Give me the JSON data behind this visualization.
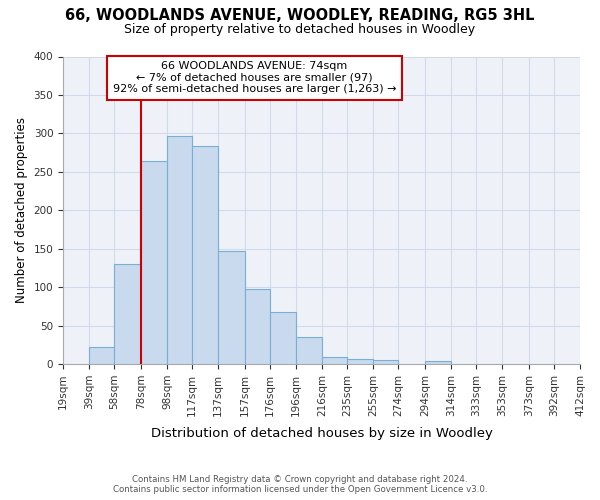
{
  "title": "66, WOODLANDS AVENUE, WOODLEY, READING, RG5 3HL",
  "subtitle": "Size of property relative to detached houses in Woodley",
  "xlabel": "Distribution of detached houses by size in Woodley",
  "ylabel": "Number of detached properties",
  "bin_edges": [
    19,
    39,
    58,
    78,
    98,
    117,
    137,
    157,
    176,
    196,
    216,
    235,
    255,
    274,
    294,
    314,
    333,
    353,
    373,
    392,
    412
  ],
  "bin_labels": [
    "19sqm",
    "39sqm",
    "58sqm",
    "78sqm",
    "98sqm",
    "117sqm",
    "137sqm",
    "157sqm",
    "176sqm",
    "196sqm",
    "216sqm",
    "235sqm",
    "255sqm",
    "274sqm",
    "294sqm",
    "314sqm",
    "333sqm",
    "353sqm",
    "373sqm",
    "392sqm",
    "412sqm"
  ],
  "bar_heights": [
    0,
    22,
    130,
    264,
    297,
    284,
    147,
    98,
    68,
    35,
    9,
    6,
    5,
    0,
    4,
    0,
    0,
    0,
    0,
    0
  ],
  "bar_color": "#c9d9ee",
  "bar_edge_color": "#7aafd4",
  "vline_x": 78,
  "vline_color": "#cc0000",
  "annotation_lines": [
    "66 WOODLANDS AVENUE: 74sqm",
    "← 7% of detached houses are smaller (97)",
    "92% of semi-detached houses are larger (1,263) →"
  ],
  "ylim": [
    0,
    400
  ],
  "yticks": [
    0,
    50,
    100,
    150,
    200,
    250,
    300,
    350,
    400
  ],
  "footer_line1": "Contains HM Land Registry data © Crown copyright and database right 2024.",
  "footer_line2": "Contains public sector information licensed under the Open Government Licence v3.0.",
  "bg_color": "#ffffff",
  "plot_bg_color": "#eef2f8",
  "grid_color": "#d0daea"
}
